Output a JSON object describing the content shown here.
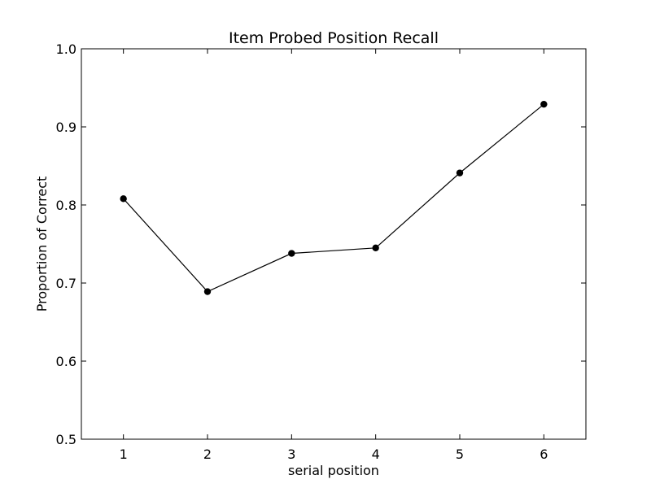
{
  "chart_data": {
    "type": "line",
    "title": "Item Probed Position Recall",
    "xlabel": "serial position",
    "ylabel": "Proportion of Correct",
    "x": [
      1,
      2,
      3,
      4,
      5,
      6
    ],
    "series": [
      {
        "values": [
          0.808,
          0.689,
          0.738,
          0.745,
          0.841,
          0.929
        ],
        "color": "#000000",
        "marker": "circle"
      }
    ],
    "xlim": [
      0.5,
      6.5
    ],
    "ylim": [
      0.5,
      1.0
    ],
    "xticks": [
      1,
      2,
      3,
      4,
      5,
      6
    ],
    "xtick_labels": [
      "1",
      "2",
      "3",
      "4",
      "5",
      "6"
    ],
    "yticks": [
      0.5,
      0.6,
      0.7,
      0.8,
      0.9,
      1.0
    ],
    "ytick_labels": [
      "0.5",
      "0.6",
      "0.7",
      "0.8",
      "0.9",
      "1.0"
    ],
    "grid": false,
    "legend": "none"
  }
}
